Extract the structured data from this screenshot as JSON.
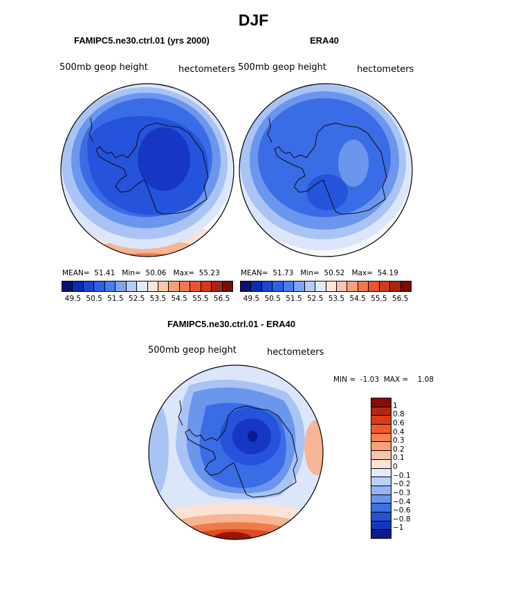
{
  "title": "DJF",
  "panels": [
    {
      "title": "FAMIPC5.ne30.ctrl.01 (yrs 2000)",
      "field": "500mb geop height",
      "units": "hectometers",
      "mean_label": "MEAN=",
      "mean": "51.41",
      "min_label": "Min=",
      "min": "50.06",
      "max_label": "Max=",
      "max": "55.23"
    },
    {
      "title": "ERA40",
      "field": "500mb geop height",
      "units": "hectometers",
      "mean_label": "MEAN=",
      "mean": "51.73",
      "min_label": "Min=",
      "min": "50.52",
      "max_label": "Max=",
      "max": "54.19"
    }
  ],
  "top_colorbar": {
    "colors": [
      "#0a1170",
      "#0d2bb0",
      "#1c45d0",
      "#2e60e6",
      "#4a7ef0",
      "#7ea4f2",
      "#b4ccf6",
      "#e2ebfa",
      "#fde6d8",
      "#f8c6ad",
      "#f7a07e",
      "#f2784f",
      "#ea5430",
      "#d33a1c",
      "#ab2410",
      "#7a0d04"
    ],
    "ticks": [
      "49.5",
      "50.5",
      "51.5",
      "52.5",
      "53.5",
      "54.5",
      "55.5",
      "56.5"
    ]
  },
  "diff_panel": {
    "title": "FAMIPC5.ne30.ctrl.01 - ERA40",
    "field": "500mb geop height",
    "units": "hectometers",
    "min_label": "MIN =",
    "min": "-1.03",
    "max_label": "MAX =",
    "max": "1.08"
  },
  "diff_colorbar": {
    "colors": [
      "#8a0c04",
      "#b52610",
      "#de3a1a",
      "#f3582b",
      "#f6804f",
      "#f7a27c",
      "#f9c6a8",
      "#fde3d2",
      "#e3ecfa",
      "#bcd1f6",
      "#94b5f3",
      "#6a95ee",
      "#3f70e2",
      "#2552d4",
      "#1437c0",
      "#0c1a8c"
    ],
    "ticks": [
      "1",
      "0.8",
      "0.6",
      "0.4",
      "0.3",
      "0.2",
      "0.1",
      "0",
      "−0.1",
      "−0.2",
      "−0.3",
      "−0.4",
      "−0.6",
      "−0.8",
      "−1"
    ]
  },
  "map_palette": {
    "ocean_white": "#f6f8fc",
    "pale_blue": "#dbe6fa",
    "light_blue": "#a9c3f5",
    "mid_blue": "#6b96ee",
    "blue": "#3a6ce6",
    "deep_blue": "#2553dc",
    "darker_blue": "#1537c4",
    "navy": "#0a1a8c",
    "pale_orange": "#fbe2d2",
    "light_orange": "#f6b594",
    "orange": "#ef7a4b",
    "red_orange": "#e24a22",
    "dark_red": "#9a1608",
    "coast": "#111111"
  }
}
